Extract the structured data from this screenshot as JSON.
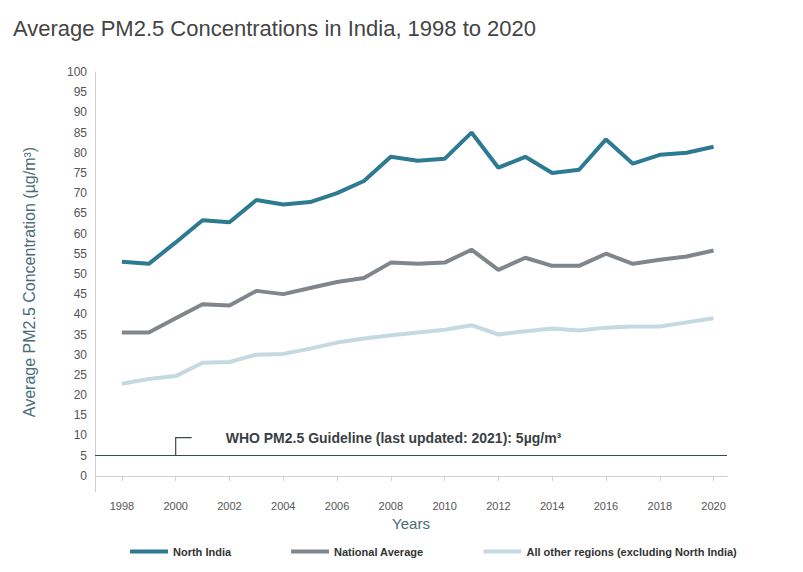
{
  "chart_data": {
    "type": "line",
    "title": "Average PM2.5 Concentrations in India, 1998 to 2020",
    "x_label": "Years",
    "y_label": "Average PM2.5 Concentration (µg/m³)",
    "x": [
      1998,
      1999,
      2000,
      2001,
      2002,
      2003,
      2004,
      2005,
      2006,
      2007,
      2008,
      2009,
      2010,
      2011,
      2012,
      2013,
      2014,
      2015,
      2016,
      2017,
      2018,
      2019,
      2020
    ],
    "series": [
      {
        "name": "North India",
        "color": "#2e7a92",
        "values": [
          53,
          52.5,
          57.8,
          63.3,
          62.8,
          68.3,
          67.2,
          67.8,
          70,
          73,
          79,
          78,
          78.5,
          85,
          76.3,
          79,
          75,
          75.8,
          83.3,
          77.3,
          79.5,
          80,
          81.5
        ]
      },
      {
        "name": "National Average",
        "color": "#80868b",
        "values": [
          35.5,
          35.5,
          39,
          42.5,
          42.2,
          45.8,
          45,
          46.5,
          48,
          49,
          52.8,
          52.5,
          52.8,
          56,
          51,
          54,
          52,
          52,
          55,
          52.5,
          53.5,
          54.3,
          55.8
        ]
      },
      {
        "name": "All other regions (excluding North India)",
        "color": "#c5d9e2",
        "values": [
          22.8,
          24,
          24.7,
          28,
          28.2,
          30,
          30.2,
          31.5,
          33,
          34,
          34.8,
          35.5,
          36.2,
          37.3,
          35,
          35.8,
          36.5,
          36,
          36.7,
          37,
          37,
          38,
          39
        ]
      }
    ],
    "annotation": {
      "text": "WHO PM2.5 Guideline (last updated: 2021): 5µg/m³",
      "x": 2000,
      "y": 5
    },
    "xlim": [
      1997,
      2020.5
    ],
    "xticks": [
      1998,
      2000,
      2002,
      2004,
      2006,
      2008,
      2010,
      2012,
      2014,
      2016,
      2018,
      2020
    ],
    "ylim": [
      -4,
      100
    ],
    "yticks": [
      0,
      5,
      10,
      15,
      20,
      25,
      30,
      35,
      40,
      45,
      50,
      55,
      60,
      65,
      70,
      75,
      80,
      85,
      90,
      95,
      100
    ],
    "grid": false,
    "legend": "bottom"
  }
}
